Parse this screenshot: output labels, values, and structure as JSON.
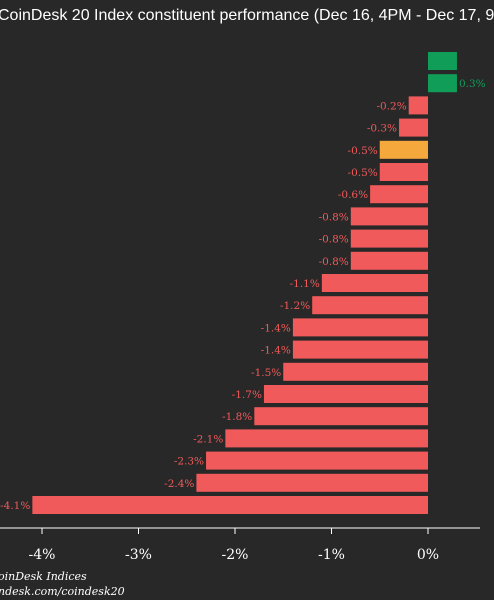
{
  "chart_data": {
    "type": "bar",
    "orientation": "horizontal",
    "title": "CoinDesk 20 Index constituent performance (Dec 16, 4PM - Dec 17, 9",
    "values": [
      0.3,
      0.3,
      -0.2,
      -0.3,
      -0.5,
      -0.5,
      -0.6,
      -0.8,
      -0.8,
      -0.8,
      -1.1,
      -1.2,
      -1.4,
      -1.4,
      -1.5,
      -1.7,
      -1.8,
      -2.1,
      -2.3,
      -2.4,
      -4.1
    ],
    "value_labels": [
      "",
      "0.3%",
      "-0.2%",
      "-0.3%",
      "-0.5%",
      "-0.5%",
      "-0.6%",
      "-0.8%",
      "-0.8%",
      "-0.8%",
      "-1.1%",
      "-1.2%",
      "-1.4%",
      "-1.4%",
      "-1.5%",
      "-1.7%",
      "-1.8%",
      "-2.1%",
      "-2.3%",
      "-2.4%",
      "-4.1%"
    ],
    "colors": [
      "#0f9d58",
      "#0f9d58",
      "#f05a5a",
      "#f05a5a",
      "#f5a83c",
      "#f05a5a",
      "#f05a5a",
      "#f05a5a",
      "#f05a5a",
      "#f05a5a",
      "#f05a5a",
      "#f05a5a",
      "#f05a5a",
      "#f05a5a",
      "#f05a5a",
      "#f05a5a",
      "#f05a5a",
      "#f05a5a",
      "#f05a5a",
      "#f05a5a",
      "#f05a5a"
    ],
    "x_ticks": [
      {
        "value": -4,
        "label": "-4%"
      },
      {
        "value": -3,
        "label": "-3%"
      },
      {
        "value": -2,
        "label": "-2%"
      },
      {
        "value": -1,
        "label": "-1%"
      },
      {
        "value": 0,
        "label": "0%"
      }
    ],
    "xlim": [
      -4.5,
      0.5
    ],
    "grid": false,
    "label_colors": {
      "positive": "#0f9d58",
      "negative": "#f05a5a"
    }
  },
  "footer": {
    "line1": "oinDesk Indices",
    "line2": "ndesk.com/coindesk20"
  },
  "colors": {
    "background": "#282828",
    "text": "#ffffff",
    "axis": "#ffffff"
  }
}
